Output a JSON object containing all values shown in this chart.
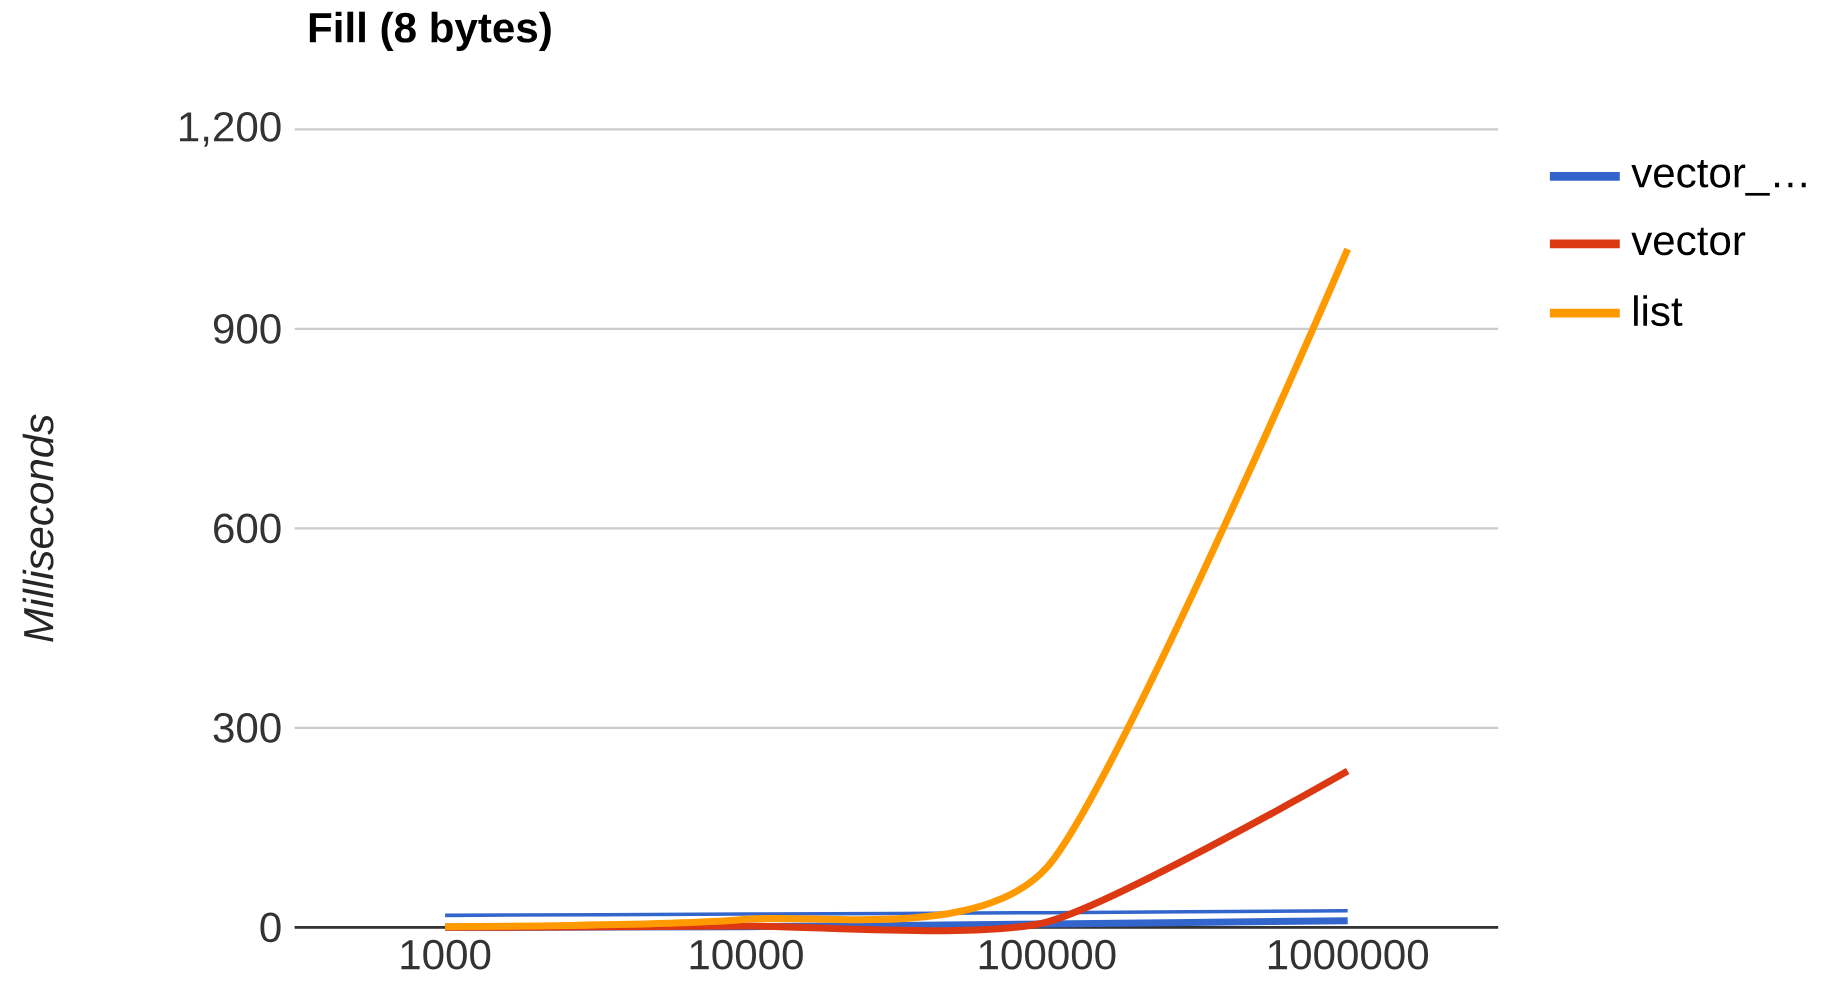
{
  "chart_data": {
    "type": "line",
    "title": "Fill (8 bytes)",
    "ylabel": "Milliseconds",
    "categories": [
      "1000",
      "10000",
      "100000",
      "1000000"
    ],
    "series": [
      {
        "name": "vector_…",
        "color": "#3366cc",
        "values": [
          0,
          1,
          5,
          10
        ]
      },
      {
        "color": "#3366cc",
        "values": [
          18,
          20,
          22,
          25
        ]
      },
      {
        "name": "vector",
        "color": "#dc3912",
        "values": [
          0,
          2,
          8,
          235
        ]
      },
      {
        "name": "list",
        "color": "#ff9900",
        "values": [
          1,
          12,
          90,
          1020
        ]
      }
    ],
    "ylim": [
      0,
      1200
    ],
    "yticks": [
      0,
      300,
      600,
      900,
      {
        "value": 1200,
        "label": "1,200"
      }
    ],
    "grid": "y",
    "legend": "right"
  }
}
